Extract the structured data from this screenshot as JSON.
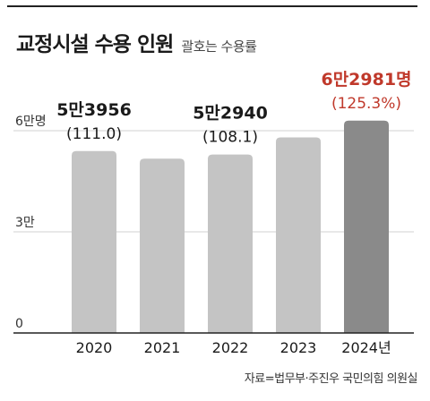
{
  "header": {
    "title": "교정시설 수용 인원",
    "subtitle": "괄호는 수용률"
  },
  "source": "자료=법무부·주진우 국민의힘 의원실",
  "colors": {
    "bar": "#c4c4c4",
    "highlight_bar": "#8a8a8a",
    "highlight_text": "#c0392b",
    "grid": "#d0d0d0",
    "axis": "#222222"
  },
  "chart_data": {
    "type": "bar",
    "title": "교정시설 수용 인원",
    "subtitle": "괄호는 수용률",
    "categories": [
      "2020",
      "2021",
      "2022",
      "2023",
      "2024년"
    ],
    "values": [
      53956,
      51700,
      52940,
      58000,
      62981
    ],
    "ylim": [
      0,
      60000
    ],
    "yticks": [
      {
        "value": 0,
        "label": "0"
      },
      {
        "value": 30000,
        "label": "3만"
      },
      {
        "value": 60000,
        "label": "6만명"
      }
    ],
    "grid": true,
    "labels": [
      {
        "index": 0,
        "value_label": "5만3956",
        "rate_label": "(111.0)",
        "highlight": false
      },
      {
        "index": 2,
        "value_label": "5만2940",
        "rate_label": "(108.1)",
        "highlight": false
      },
      {
        "index": 4,
        "value_label": "6만2981명",
        "rate_label": "(125.3%)",
        "highlight": true
      }
    ],
    "highlight_index": 4
  }
}
